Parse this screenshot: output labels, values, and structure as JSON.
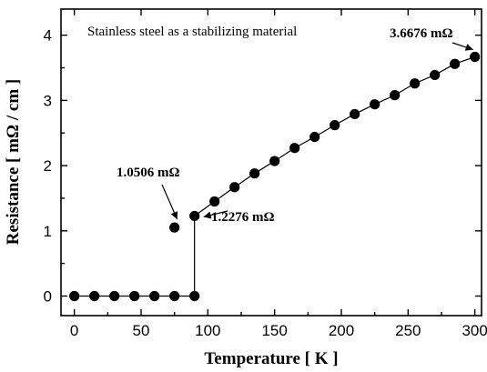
{
  "chart_data": {
    "type": "scatter",
    "title": "Stainless steel as a stabilizing material",
    "xlabel": "Temperature [ K ]",
    "ylabel": "Resistance  [ mΩ / cm ]",
    "xlim": [
      -10,
      305
    ],
    "ylim": [
      -0.3,
      4.4
    ],
    "xticks": [
      0,
      50,
      100,
      150,
      200,
      250,
      300
    ],
    "yticks": [
      0,
      1,
      2,
      3,
      4
    ],
    "grid": false,
    "series": [
      {
        "values_x": [
          0,
          15,
          30,
          45,
          60,
          75,
          90,
          90,
          105,
          120,
          135,
          150,
          165,
          180,
          195,
          210,
          225,
          240,
          255,
          270,
          285,
          300
        ],
        "values_y": [
          0,
          0,
          0,
          0,
          0,
          0,
          0,
          1.2276,
          1.45,
          1.67,
          1.88,
          2.07,
          2.27,
          2.44,
          2.62,
          2.79,
          2.94,
          3.08,
          3.26,
          3.39,
          3.56,
          3.6676
        ]
      }
    ],
    "outlier_point": {
      "x": 75,
      "y": 1.0506
    },
    "annotations": [
      {
        "text": "1.0506  mΩ",
        "x": 75,
        "y": 1.0506
      },
      {
        "text": "1.2276  mΩ",
        "x": 90,
        "y": 1.2276
      },
      {
        "text": "3.6676  mΩ",
        "x": 300,
        "y": 3.6676
      }
    ]
  }
}
